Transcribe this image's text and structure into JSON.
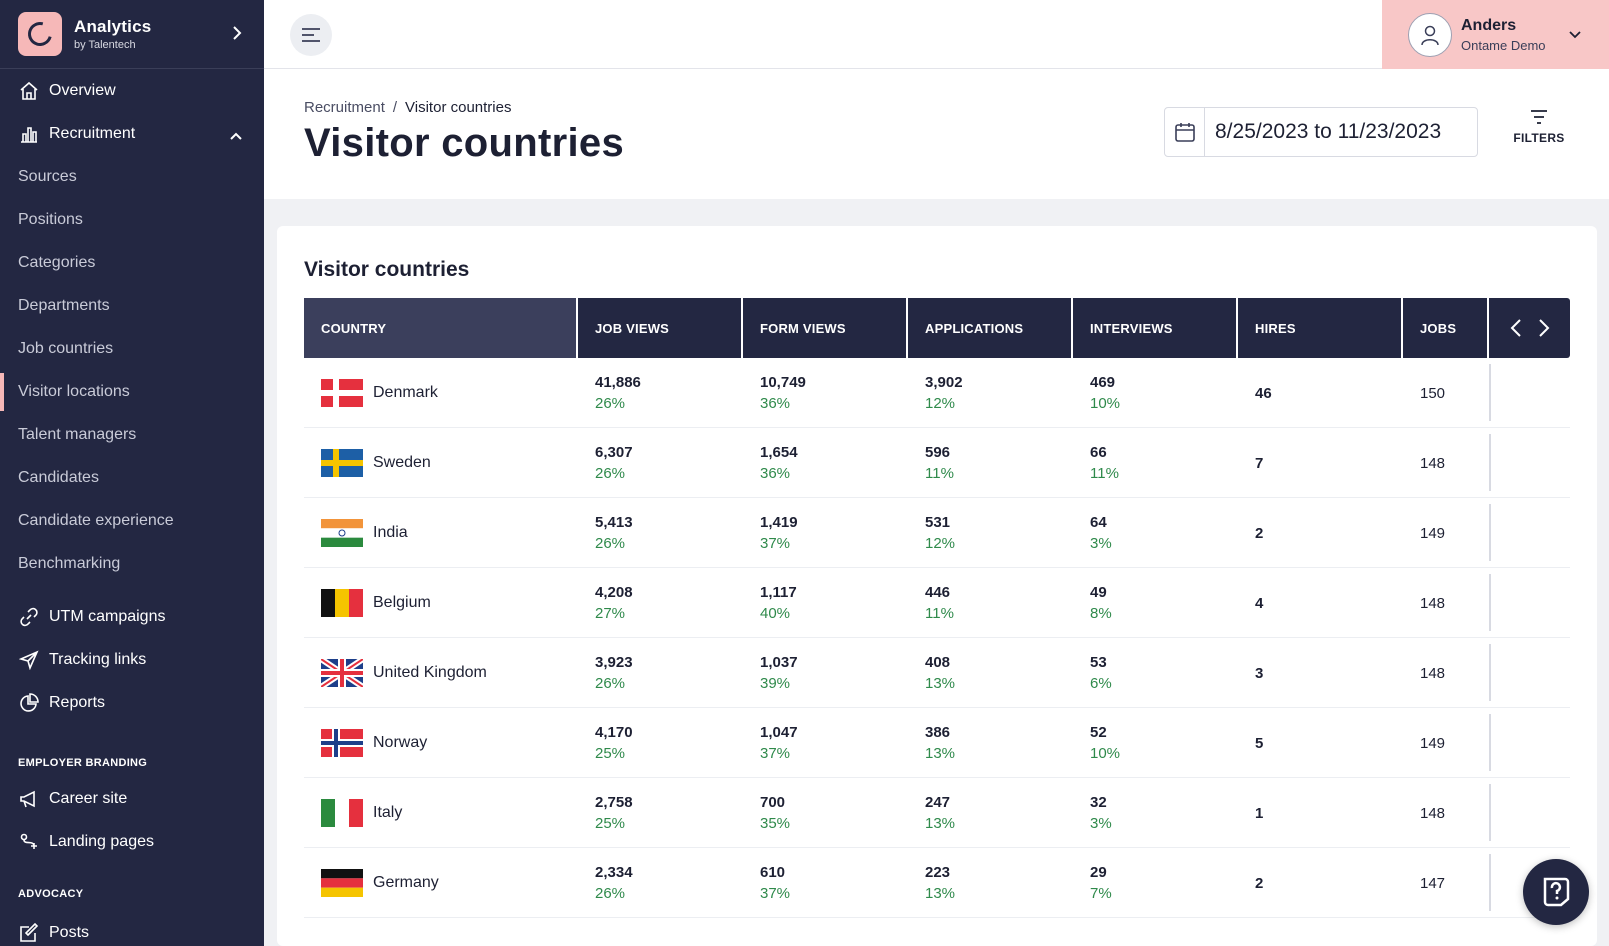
{
  "brand": {
    "title": "Analytics",
    "subtitle": "by Talentech"
  },
  "nav": {
    "overview": "Overview",
    "recruitment": "Recruitment",
    "sub_items": [
      "Sources",
      "Positions",
      "Categories",
      "Departments",
      "Job countries",
      "Visitor locations",
      "Talent managers",
      "Candidates",
      "Candidate experience",
      "Benchmarking"
    ],
    "utm": "UTM campaigns",
    "tracking": "Tracking links",
    "reports": "Reports",
    "section_branding": "EMPLOYER BRANDING",
    "career_site": "Career site",
    "landing_pages": "Landing pages",
    "section_advocacy": "ADVOCACY",
    "posts": "Posts"
  },
  "user": {
    "name": "Anders",
    "org": "Ontame Demo"
  },
  "breadcrumb": {
    "parent": "Recruitment",
    "separator": "/",
    "current": "Visitor countries"
  },
  "page_title": "Visitor countries",
  "date_range": "8/25/2023 to 11/23/2023",
  "filters_label": "FILTERS",
  "card_title": "Visitor countries",
  "columns": [
    "COUNTRY",
    "JOB VIEWS",
    "FORM VIEWS",
    "APPLICATIONS",
    "INTERVIEWS",
    "HIRES",
    "JOBS"
  ],
  "rows": [
    {
      "country": "Denmark",
      "flag": "dk",
      "job_views": "41,886",
      "job_views_pct": "26%",
      "form_views": "10,749",
      "form_views_pct": "36%",
      "applications": "3,902",
      "applications_pct": "12%",
      "interviews": "469",
      "interviews_pct": "10%",
      "hires": "46",
      "jobs": "150"
    },
    {
      "country": "Sweden",
      "flag": "se",
      "job_views": "6,307",
      "job_views_pct": "26%",
      "form_views": "1,654",
      "form_views_pct": "36%",
      "applications": "596",
      "applications_pct": "11%",
      "interviews": "66",
      "interviews_pct": "11%",
      "hires": "7",
      "jobs": "148"
    },
    {
      "country": "India",
      "flag": "in",
      "job_views": "5,413",
      "job_views_pct": "26%",
      "form_views": "1,419",
      "form_views_pct": "37%",
      "applications": "531",
      "applications_pct": "12%",
      "interviews": "64",
      "interviews_pct": "3%",
      "hires": "2",
      "jobs": "149"
    },
    {
      "country": "Belgium",
      "flag": "be",
      "job_views": "4,208",
      "job_views_pct": "27%",
      "form_views": "1,117",
      "form_views_pct": "40%",
      "applications": "446",
      "applications_pct": "11%",
      "interviews": "49",
      "interviews_pct": "8%",
      "hires": "4",
      "jobs": "148"
    },
    {
      "country": "United Kingdom",
      "flag": "gb",
      "job_views": "3,923",
      "job_views_pct": "26%",
      "form_views": "1,037",
      "form_views_pct": "39%",
      "applications": "408",
      "applications_pct": "13%",
      "interviews": "53",
      "interviews_pct": "6%",
      "hires": "3",
      "jobs": "148"
    },
    {
      "country": "Norway",
      "flag": "no",
      "job_views": "4,170",
      "job_views_pct": "25%",
      "form_views": "1,047",
      "form_views_pct": "37%",
      "applications": "386",
      "applications_pct": "13%",
      "interviews": "52",
      "interviews_pct": "10%",
      "hires": "5",
      "jobs": "149"
    },
    {
      "country": "Italy",
      "flag": "it",
      "job_views": "2,758",
      "job_views_pct": "25%",
      "form_views": "700",
      "form_views_pct": "35%",
      "applications": "247",
      "applications_pct": "13%",
      "interviews": "32",
      "interviews_pct": "3%",
      "hires": "1",
      "jobs": "148"
    },
    {
      "country": "Germany",
      "flag": "de",
      "job_views": "2,334",
      "job_views_pct": "26%",
      "form_views": "610",
      "form_views_pct": "37%",
      "applications": "223",
      "applications_pct": "13%",
      "interviews": "29",
      "interviews_pct": "7%",
      "hires": "2",
      "jobs": "147"
    }
  ],
  "colors": {
    "sidebar": "#232742",
    "accent": "#f6b8b8",
    "user_bg": "#f8c7c7",
    "pct_green": "#2f8a4b"
  }
}
